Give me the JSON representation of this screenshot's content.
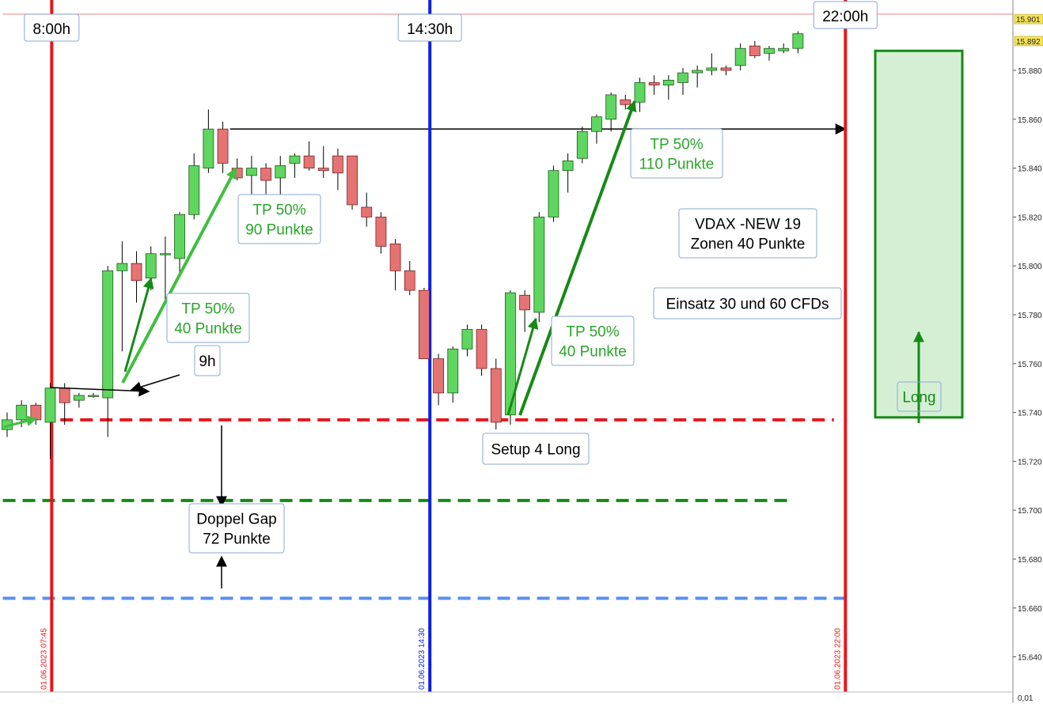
{
  "chart_data": {
    "type": "candlestick",
    "ylim": [
      15630,
      15905
    ],
    "x_count": 56,
    "price_axis": {
      "ticks": [
        "15.880",
        "15.860",
        "15.840",
        "15.820",
        "15.800",
        "15.780",
        "15.760",
        "15.740",
        "15.720",
        "15.700",
        "15.680",
        "15.660",
        "15.640"
      ],
      "tick_values": [
        15880,
        15860,
        15840,
        15820,
        15800,
        15780,
        15760,
        15740,
        15720,
        15700,
        15680,
        15660,
        15640
      ],
      "bottom_label": "0,01",
      "price_tags": [
        {
          "label": "15.901",
          "value": 15901,
          "color": "#f5e35a"
        },
        {
          "label": "15.892",
          "value": 15892,
          "color": "#f5e35a"
        }
      ]
    },
    "candles": [
      {
        "o": 15733,
        "h": 15740,
        "l": 15730,
        "c": 15737
      },
      {
        "o": 15737,
        "h": 15745,
        "l": 15734,
        "c": 15743
      },
      {
        "o": 15743,
        "h": 15744,
        "l": 15735,
        "c": 15737
      },
      {
        "o": 15736,
        "h": 15752,
        "l": 15721,
        "c": 15750
      },
      {
        "o": 15750,
        "h": 15752,
        "l": 15735,
        "c": 15744
      },
      {
        "o": 15745,
        "h": 15748,
        "l": 15742,
        "c": 15747
      },
      {
        "o": 15747,
        "h": 15748,
        "l": 15746,
        "c": 15747
      },
      {
        "o": 15746,
        "h": 15800,
        "l": 15730,
        "c": 15798
      },
      {
        "o": 15798,
        "h": 15810,
        "l": 15765,
        "c": 15801
      },
      {
        "o": 15801,
        "h": 15806,
        "l": 15785,
        "c": 15794
      },
      {
        "o": 15795,
        "h": 15808,
        "l": 15790,
        "c": 15805
      },
      {
        "o": 15805,
        "h": 15812,
        "l": 15785,
        "c": 15805
      },
      {
        "o": 15803,
        "h": 15822,
        "l": 15797,
        "c": 15821
      },
      {
        "o": 15821,
        "h": 15846,
        "l": 15819,
        "c": 15841
      },
      {
        "o": 15840,
        "h": 15864,
        "l": 15838,
        "c": 15856
      },
      {
        "o": 15856,
        "h": 15859,
        "l": 15838,
        "c": 15842
      },
      {
        "o": 15840,
        "h": 15844,
        "l": 15835,
        "c": 15836
      },
      {
        "o": 15837,
        "h": 15845,
        "l": 15829,
        "c": 15840
      },
      {
        "o": 15840,
        "h": 15842,
        "l": 15828,
        "c": 15835
      },
      {
        "o": 15836,
        "h": 15845,
        "l": 15829,
        "c": 15841
      },
      {
        "o": 15842,
        "h": 15846,
        "l": 15836,
        "c": 15845
      },
      {
        "o": 15845,
        "h": 15851,
        "l": 15839,
        "c": 15840
      },
      {
        "o": 15840,
        "h": 15849,
        "l": 15836,
        "c": 15839
      },
      {
        "o": 15845,
        "h": 15848,
        "l": 15831,
        "c": 15838
      },
      {
        "o": 15845,
        "h": 15845,
        "l": 15823,
        "c": 15825
      },
      {
        "o": 15824,
        "h": 15830,
        "l": 15816,
        "c": 15820
      },
      {
        "o": 15820,
        "h": 15822,
        "l": 15805,
        "c": 15808
      },
      {
        "o": 15809,
        "h": 15811,
        "l": 15790,
        "c": 15798
      },
      {
        "o": 15798,
        "h": 15802,
        "l": 15788,
        "c": 15790
      },
      {
        "o": 15790,
        "h": 15791,
        "l": 15762,
        "c": 15762
      },
      {
        "o": 15762,
        "h": 15764,
        "l": 15743,
        "c": 15748
      },
      {
        "o": 15748,
        "h": 15767,
        "l": 15744,
        "c": 15766
      },
      {
        "o": 15766,
        "h": 15776,
        "l": 15763,
        "c": 15774
      },
      {
        "o": 15774,
        "h": 15776,
        "l": 15755,
        "c": 15758
      },
      {
        "o": 15758,
        "h": 15762,
        "l": 15733,
        "c": 15736
      },
      {
        "o": 15739,
        "h": 15790,
        "l": 15735,
        "c": 15789
      },
      {
        "o": 15788,
        "h": 15790,
        "l": 15773,
        "c": 15782
      },
      {
        "o": 15781,
        "h": 15822,
        "l": 15777,
        "c": 15820
      },
      {
        "o": 15820,
        "h": 15841,
        "l": 15818,
        "c": 15839
      },
      {
        "o": 15839,
        "h": 15846,
        "l": 15830,
        "c": 15843
      },
      {
        "o": 15844,
        "h": 15857,
        "l": 15842,
        "c": 15855
      },
      {
        "o": 15855,
        "h": 15862,
        "l": 15850,
        "c": 15861
      },
      {
        "o": 15860,
        "h": 15871,
        "l": 15855,
        "c": 15870
      },
      {
        "o": 15868,
        "h": 15870,
        "l": 15864,
        "c": 15866
      },
      {
        "o": 15867,
        "h": 15877,
        "l": 15863,
        "c": 15875
      },
      {
        "o": 15875,
        "h": 15878,
        "l": 15870,
        "c": 15874
      },
      {
        "o": 15874,
        "h": 15878,
        "l": 15868,
        "c": 15876
      },
      {
        "o": 15875,
        "h": 15881,
        "l": 15870,
        "c": 15879
      },
      {
        "o": 15879,
        "h": 15882,
        "l": 15873,
        "c": 15880
      },
      {
        "o": 15880,
        "h": 15887,
        "l": 15878,
        "c": 15881
      },
      {
        "o": 15881,
        "h": 15882,
        "l": 15878,
        "c": 15880
      },
      {
        "o": 15882,
        "h": 15891,
        "l": 15880,
        "c": 15889
      },
      {
        "o": 15890,
        "h": 15892,
        "l": 15885,
        "c": 15886
      },
      {
        "o": 15887,
        "h": 15890,
        "l": 15884,
        "c": 15889
      },
      {
        "o": 15888,
        "h": 15891,
        "l": 15887,
        "c": 15889
      },
      {
        "o": 15889,
        "h": 15896,
        "l": 15887,
        "c": 15895
      }
    ],
    "vertical_lines": [
      {
        "index": 3.1,
        "color": "#e8161b",
        "label": "8:00h",
        "date_label": "01.06.2023 07:45"
      },
      {
        "index": 29.4,
        "color": "#0d20e6",
        "label": "14:30h",
        "date_label": "01.06.2023 14:30"
      },
      {
        "index": 58.3,
        "color": "#e8161b",
        "label": "22:00h",
        "date_label": "01.06.2023 22:00"
      }
    ],
    "horizontal_lines": [
      {
        "value": 15737,
        "color": "#e8161b",
        "style": "dashed",
        "from": 3.7,
        "to": 57.5
      },
      {
        "value": 15704,
        "color": "#168a16",
        "style": "dashed",
        "from": -0.3,
        "to": 54.5
      },
      {
        "value": 15664,
        "color": "#5b8ff0",
        "style": "dashed",
        "from": -0.3,
        "to": 58.3
      },
      {
        "value": 15856,
        "color": "#000000",
        "style": "arrow",
        "from": 15.5,
        "to": 58.3
      },
      {
        "value": 15903,
        "color": "#f08080",
        "style": "thin",
        "from": -0.3,
        "to": 68
      }
    ],
    "annotations": [
      {
        "text": "TP 50%\n90 Punkte",
        "color": "#2aa52a"
      },
      {
        "text": "TP 50%\n40 Punkte",
        "color": "#2aa52a"
      },
      {
        "text": "9h",
        "color": "#000000"
      },
      {
        "text": "TP 50%\n110 Punkte",
        "color": "#2aa52a"
      },
      {
        "text": "VDAX -NEW 19\nZonen 40 Punkte",
        "color": "#000000"
      },
      {
        "text": "Einsatz 30 und 60 CFDs",
        "color": "#000000"
      },
      {
        "text": "TP 50%\n40 Punkte",
        "color": "#2aa52a"
      },
      {
        "text": "Setup 4 Long",
        "color": "#000000"
      },
      {
        "text": "Doppel Gap\n72 Punkte",
        "color": "#000000"
      },
      {
        "text": "Long",
        "color": "#168a16"
      }
    ],
    "long_zone": {
      "from_value": 15738,
      "to_value": 15888,
      "color": "#168a16"
    },
    "colors": {
      "up": "#5fd65f",
      "down": "#e57373",
      "up_stroke": "#1c5a1c",
      "down_stroke": "#7a2222"
    }
  }
}
